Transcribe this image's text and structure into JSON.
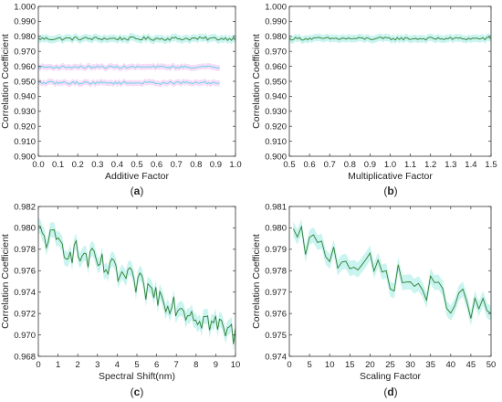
{
  "chart_data": [
    {
      "type": "line",
      "panel_label": "a",
      "xlabel": "Additive Factor",
      "ylabel": "Correlation Coefficient",
      "xlim": [
        0.0,
        1.0
      ],
      "ylim": [
        0.9,
        1.0
      ],
      "x_ticks": [
        "0.0",
        "0.1",
        "0.2",
        "0.3",
        "0.4",
        "0.5",
        "0.6",
        "0.7",
        "0.8",
        "0.9",
        "1.0"
      ],
      "y_ticks": [
        "0.900",
        "0.910",
        "0.920",
        "0.930",
        "0.940",
        "0.950",
        "0.960",
        "0.970",
        "0.980",
        "0.990",
        "1.000"
      ],
      "x_range": [
        0.0,
        1.0
      ],
      "points": 100,
      "series": [
        {
          "level": 0.9785,
          "amplitude": 0.0012,
          "color": "#2e7d32",
          "band": "#b2f0e8",
          "band_halfwidth": 0.0025
        },
        {
          "level": 0.9595,
          "amplitude": 0.0008,
          "color": "#5fd3e6",
          "band": "#f3cdf3",
          "band_halfwidth": 0.002,
          "x_end": 0.92
        },
        {
          "level": 0.949,
          "amplitude": 0.0009,
          "color": "#5fd3e6",
          "band": "#f3cdf3",
          "band_halfwidth": 0.002,
          "x_end": 0.92
        }
      ]
    },
    {
      "type": "line",
      "panel_label": "b",
      "xlabel": "Multiplicative Factor",
      "ylabel": "Correlation Coefficient",
      "xlim": [
        0.5,
        1.5
      ],
      "ylim": [
        0.9,
        1.0
      ],
      "x_ticks": [
        "0.5",
        "0.6",
        "0.7",
        "0.8",
        "0.9",
        "1.0",
        "1.1",
        "1.2",
        "1.3",
        "1.4",
        "1.5"
      ],
      "y_ticks": [
        "0.900",
        "0.910",
        "0.920",
        "0.930",
        "0.940",
        "0.950",
        "0.960",
        "0.970",
        "0.980",
        "0.990",
        "1.000"
      ],
      "x_range": [
        0.5,
        1.5
      ],
      "points": 100,
      "series": [
        {
          "level": 0.9785,
          "amplitude": 0.001,
          "color": "#2e7d32",
          "band": "#b2f0e8",
          "band_halfwidth": 0.0025
        }
      ]
    },
    {
      "type": "line",
      "panel_label": "c",
      "xlabel": "Spectral Shift(nm)",
      "ylabel": "Correlation Coefficient",
      "xlim": [
        0,
        10
      ],
      "ylim": [
        0.968,
        0.982
      ],
      "x_ticks": [
        "0",
        "1",
        "2",
        "3",
        "4",
        "5",
        "6",
        "7",
        "8",
        "9",
        "10"
      ],
      "y_ticks": [
        "0.968",
        "0.970",
        "0.972",
        "0.974",
        "0.976",
        "0.978",
        "0.980",
        "0.982"
      ],
      "x_range": [
        0,
        10
      ],
      "points": 100,
      "series": [
        {
          "start": 0.9795,
          "end": 0.97,
          "amplitude": 0.0012,
          "color": "#2e7d32",
          "band": "#b2f0e8",
          "band_halfwidth": 0.0007
        }
      ]
    },
    {
      "type": "line",
      "panel_label": "d",
      "xlabel": "Scaling Factor",
      "ylabel": "Correlation Coefficient",
      "xlim": [
        0,
        50
      ],
      "ylim": [
        0.974,
        0.981
      ],
      "x_ticks": [
        "0",
        "5",
        "10",
        "15",
        "20",
        "25",
        "30",
        "35",
        "40",
        "45",
        "50"
      ],
      "y_ticks": [
        "0.974",
        "0.975",
        "0.976",
        "0.977",
        "0.978",
        "0.979",
        "0.980",
        "0.981"
      ],
      "x_range": [
        1,
        50
      ],
      "points": 50,
      "series": [
        {
          "start": 0.9795,
          "end": 0.976,
          "amplitude": 0.0007,
          "color": "#2e7d32",
          "band": "#b2f0e8",
          "band_halfwidth": 0.00035
        }
      ]
    }
  ]
}
